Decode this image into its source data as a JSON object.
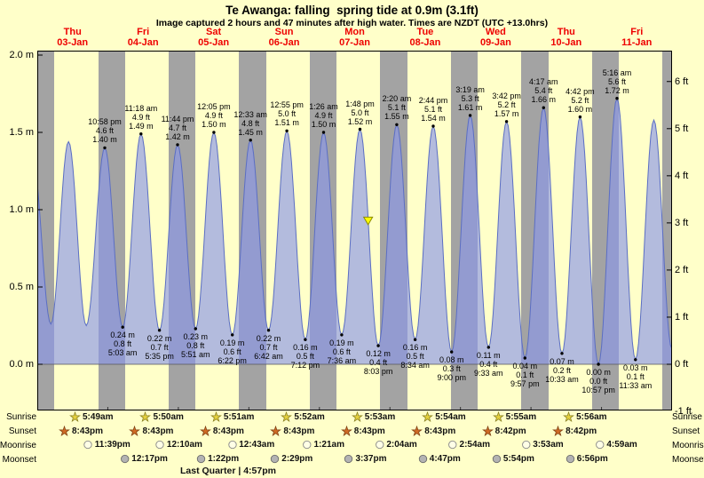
{
  "chart_data": {
    "type": "area",
    "title": "Te Awanga: falling  spring tide at 0.9m (3.1ft)",
    "subtitle": "Image captured 2 hours and 47 minutes after high water. Times are NZDT (UTC +13.0hrs)",
    "x_days": [
      {
        "name": "Thu",
        "date": "03-Jan"
      },
      {
        "name": "Fri",
        "date": "04-Jan"
      },
      {
        "name": "Sat",
        "date": "05-Jan"
      },
      {
        "name": "Sun",
        "date": "06-Jan"
      },
      {
        "name": "Mon",
        "date": "07-Jan"
      },
      {
        "name": "Tue",
        "date": "08-Jan"
      },
      {
        "name": "Wed",
        "date": "09-Jan"
      },
      {
        "name": "Thu",
        "date": "10-Jan"
      },
      {
        "name": "Fri",
        "date": "11-Jan"
      }
    ],
    "yticks_left": [
      {
        "label": "2.0 m",
        "value": 2.0
      },
      {
        "label": "1.5 m",
        "value": 1.5
      },
      {
        "label": "1.0 m",
        "value": 1.0
      },
      {
        "label": "0.5 m",
        "value": 0.5
      },
      {
        "label": "0.0 m",
        "value": 0.0
      }
    ],
    "yticks_right": [
      {
        "label": "6 ft",
        "value": 6
      },
      {
        "label": "5 ft",
        "value": 5
      },
      {
        "label": "4 ft",
        "value": 4
      },
      {
        "label": "3 ft",
        "value": 3
      },
      {
        "label": "2 ft",
        "value": 2
      },
      {
        "label": "1 ft",
        "value": 1
      },
      {
        "label": "0 ft",
        "value": 0
      },
      {
        "label": "-1 ft",
        "value": -1
      }
    ],
    "ylim_m": [
      -0.3,
      2.03
    ],
    "tide_extremes": [
      {
        "day": -1,
        "time": "10:20 pm",
        "height_m": 1.35,
        "type": "high",
        "labeled": false
      },
      {
        "day": 0,
        "time": "4:38 am",
        "height_m": 0.26,
        "type": "low",
        "labeled": false
      },
      {
        "day": 0,
        "time": "10:38 am",
        "height_m": 1.44,
        "type": "high",
        "labeled": false
      },
      {
        "day": 0,
        "time": "4:40 pm",
        "height_m": 0.25,
        "type": "low",
        "labeled": false
      },
      {
        "day": 0,
        "time": "10:58 pm",
        "height_m": 1.4,
        "type": "high",
        "labeled": true,
        "lines": [
          "10:58 pm",
          "4.6 ft",
          "1.40 m"
        ]
      },
      {
        "day": 1,
        "time": "5:03 am",
        "height_m": 0.24,
        "type": "low",
        "labeled": true,
        "lines": [
          "0.24 m",
          "0.8 ft",
          "5:03 am"
        ]
      },
      {
        "day": 1,
        "time": "11:18 am",
        "height_m": 1.49,
        "type": "high",
        "labeled": true,
        "lines": [
          "11:18 am",
          "4.9 ft",
          "1.49 m"
        ]
      },
      {
        "day": 1,
        "time": "5:35 pm",
        "height_m": 0.22,
        "type": "low",
        "labeled": true,
        "lines": [
          "0.22 m",
          "0.7 ft",
          "5:35 pm"
        ]
      },
      {
        "day": 1,
        "time": "11:44 pm",
        "height_m": 1.42,
        "type": "high",
        "labeled": true,
        "lines": [
          "11:44 pm",
          "4.7 ft",
          "1.42 m"
        ]
      },
      {
        "day": 2,
        "time": "5:51 am",
        "height_m": 0.23,
        "type": "low",
        "labeled": true,
        "lines": [
          "0.23 m",
          "0.8 ft",
          "5:51 am"
        ]
      },
      {
        "day": 2,
        "time": "12:05 pm",
        "height_m": 1.5,
        "type": "high",
        "labeled": true,
        "lines": [
          "12:05 pm",
          "4.9 ft",
          "1.50 m"
        ]
      },
      {
        "day": 2,
        "time": "6:22 pm",
        "height_m": 0.19,
        "type": "low",
        "labeled": true,
        "lines": [
          "0.19 m",
          "0.6 ft",
          "6:22 pm"
        ]
      },
      {
        "day": 3,
        "time": "12:33 am",
        "height_m": 1.45,
        "type": "high",
        "labeled": true,
        "lines": [
          "12:33 am",
          "4.8 ft",
          "1.45 m"
        ]
      },
      {
        "day": 3,
        "time": "6:42 am",
        "height_m": 0.22,
        "type": "low",
        "labeled": true,
        "lines": [
          "0.22 m",
          "0.7 ft",
          "6:42 am"
        ]
      },
      {
        "day": 3,
        "time": "12:55 pm",
        "height_m": 1.51,
        "type": "high",
        "labeled": true,
        "lines": [
          "12:55 pm",
          "5.0 ft",
          "1.51 m"
        ]
      },
      {
        "day": 3,
        "time": "7:12 pm",
        "height_m": 0.16,
        "type": "low",
        "labeled": true,
        "lines": [
          "0.16 m",
          "0.5 ft",
          "7:12 pm"
        ]
      },
      {
        "day": 4,
        "time": "1:26 am",
        "height_m": 1.5,
        "type": "high",
        "labeled": true,
        "lines": [
          "1:26 am",
          "4.9 ft",
          "1.50 m"
        ]
      },
      {
        "day": 4,
        "time": "7:36 am",
        "height_m": 0.19,
        "type": "low",
        "labeled": true,
        "lines": [
          "0.19 m",
          "0.6 ft",
          "7:36 am"
        ]
      },
      {
        "day": 4,
        "time": "1:48 pm",
        "height_m": 1.52,
        "type": "high",
        "labeled": true,
        "lines": [
          "1:48 pm",
          "5.0 ft",
          "1.52 m"
        ]
      },
      {
        "day": 4,
        "time": "8:03 pm",
        "height_m": 0.12,
        "type": "low",
        "labeled": true,
        "lines": [
          "0.12 m",
          "0.4 ft",
          "8:03 pm"
        ]
      },
      {
        "day": 5,
        "time": "2:20 am",
        "height_m": 1.55,
        "type": "high",
        "labeled": true,
        "lines": [
          "2:20 am",
          "5.1 ft",
          "1.55 m"
        ]
      },
      {
        "day": 5,
        "time": "8:34 am",
        "height_m": 0.16,
        "type": "low",
        "labeled": true,
        "lines": [
          "0.16 m",
          "0.5 ft",
          "8:34 am"
        ]
      },
      {
        "day": 5,
        "time": "2:44 pm",
        "height_m": 1.54,
        "type": "high",
        "labeled": true,
        "lines": [
          "2:44 pm",
          "5.1 ft",
          "1.54 m"
        ]
      },
      {
        "day": 5,
        "time": "9:00 pm",
        "height_m": 0.08,
        "type": "low",
        "labeled": true,
        "lines": [
          "0.08 m",
          "0.3 ft",
          "9:00 pm"
        ]
      },
      {
        "day": 6,
        "time": "3:19 am",
        "height_m": 1.61,
        "type": "high",
        "labeled": true,
        "lines": [
          "3:19 am",
          "5.3 ft",
          "1.61 m"
        ]
      },
      {
        "day": 6,
        "time": "9:33 am",
        "height_m": 0.11,
        "type": "low",
        "labeled": true,
        "lines": [
          "0.11 m",
          "0.4 ft",
          "9:33 am"
        ]
      },
      {
        "day": 6,
        "time": "3:42 pm",
        "height_m": 1.57,
        "type": "high",
        "labeled": true,
        "lines": [
          "3:42 pm",
          "5.2 ft",
          "1.57 m"
        ]
      },
      {
        "day": 6,
        "time": "9:57 pm",
        "height_m": 0.04,
        "type": "low",
        "labeled": true,
        "lines": [
          "0.04 m",
          "0.1 ft",
          "9:57 pm"
        ]
      },
      {
        "day": 7,
        "time": "4:17 am",
        "height_m": 1.66,
        "type": "high",
        "labeled": true,
        "lines": [
          "4:17 am",
          "5.4 ft",
          "1.66 m"
        ]
      },
      {
        "day": 7,
        "time": "10:33 am",
        "height_m": 0.07,
        "type": "low",
        "labeled": true,
        "lines": [
          "0.07 m",
          "0.2 ft",
          "10:33 am"
        ]
      },
      {
        "day": 7,
        "time": "4:42 pm",
        "height_m": 1.6,
        "type": "high",
        "labeled": true,
        "lines": [
          "4:42 pm",
          "5.2 ft",
          "1.60 m"
        ]
      },
      {
        "day": 7,
        "time": "10:57 pm",
        "height_m": 0.0,
        "type": "low",
        "labeled": true,
        "lines": [
          "0.00 m",
          "0.0 ft",
          "10:57 pm"
        ]
      },
      {
        "day": 8,
        "time": "5:16 am",
        "height_m": 1.72,
        "type": "high",
        "labeled": true,
        "lines": [
          "5:16 am",
          "5.6 ft",
          "1.72 m"
        ]
      },
      {
        "day": 8,
        "time": "11:33 am",
        "height_m": 0.03,
        "type": "low",
        "labeled": true,
        "lines": [
          "0.03 m",
          "0.1 ft",
          "11:33 am"
        ]
      },
      {
        "day": 8,
        "time": "5:48 pm",
        "height_m": 1.58,
        "type": "high",
        "labeled": false
      },
      {
        "day": 8,
        "time": "11:56 pm",
        "height_m": 0.1,
        "type": "low",
        "labeled": false
      }
    ],
    "current_marker": {
      "day": 4,
      "time": "4:35 pm",
      "height_m": 0.9
    },
    "astro": {
      "rows": [
        {
          "key": "sunrise",
          "label": "Sunrise",
          "items": [
            {
              "day": 0,
              "time": "5:49am"
            },
            {
              "day": 1,
              "time": "5:50am"
            },
            {
              "day": 2,
              "time": "5:51am"
            },
            {
              "day": 3,
              "time": "5:52am"
            },
            {
              "day": 4,
              "time": "5:53am"
            },
            {
              "day": 5,
              "time": "5:54am"
            },
            {
              "day": 6,
              "time": "5:55am"
            },
            {
              "day": 7,
              "time": "5:56am"
            }
          ]
        },
        {
          "key": "sunset",
          "label": "Sunset",
          "items": [
            {
              "day": 0,
              "time": "8:43pm"
            },
            {
              "day": 1,
              "time": "8:43pm"
            },
            {
              "day": 2,
              "time": "8:43pm"
            },
            {
              "day": 3,
              "time": "8:43pm"
            },
            {
              "day": 4,
              "time": "8:43pm"
            },
            {
              "day": 5,
              "time": "8:43pm"
            },
            {
              "day": 6,
              "time": "8:42pm"
            },
            {
              "day": 7,
              "time": "8:42pm"
            }
          ]
        },
        {
          "key": "moonrise",
          "label": "Moonrise",
          "items": [
            {
              "day": 0,
              "time": "11:39pm"
            },
            {
              "day": 2,
              "time": "12:10am"
            },
            {
              "day": 3,
              "time": "12:43am"
            },
            {
              "day": 4,
              "time": "1:21am"
            },
            {
              "day": 5,
              "time": "2:04am"
            },
            {
              "day": 6,
              "time": "2:54am"
            },
            {
              "day": 7,
              "time": "3:53am"
            },
            {
              "day": 8,
              "time": "4:59am"
            }
          ]
        },
        {
          "key": "moonset",
          "label": "Moonset",
          "items": [
            {
              "day": 1,
              "time": "12:17pm"
            },
            {
              "day": 2,
              "time": "1:22pm"
            },
            {
              "day": 3,
              "time": "2:29pm"
            },
            {
              "day": 4,
              "time": "3:37pm"
            },
            {
              "day": 5,
              "time": "4:47pm"
            },
            {
              "day": 6,
              "time": "5:54pm"
            },
            {
              "day": 7,
              "time": "6:56pm"
            }
          ]
        }
      ],
      "moon_phase": {
        "text": "Last Quarter | 4:57pm",
        "day": 2,
        "time": "4:57pm"
      }
    },
    "colors": {
      "background": "#ffffc9",
      "night_band": "#a3a3a3",
      "tide_fill": "rgba(138,150,232,0.65)",
      "tide_stroke": "#5b6ec3",
      "day_label": "#ee0000",
      "marker_fill": "#ffff00",
      "marker_edge": "#8a8a00",
      "sunrise_star": "#e3cf3e",
      "sunrise_star_edge": "#857c1e",
      "sunset_star": "#cf6a24",
      "sunset_star_edge": "#7d3f12",
      "moonrise_fill": "#ffffe6",
      "moonrise_edge": "#8a8a8a",
      "moonset_fill": "#b3b3b3",
      "moonset_edge": "#6e6e6e"
    }
  }
}
